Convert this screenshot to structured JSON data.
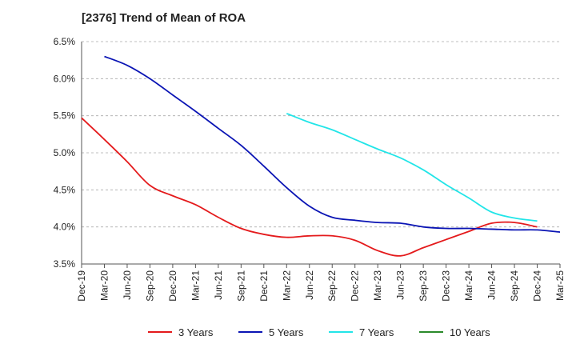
{
  "chart_data": {
    "type": "line",
    "title": "[2376]  Trend of Mean of ROA",
    "xlabel": "",
    "ylabel": "",
    "ylim": [
      3.5,
      6.5
    ],
    "y_ticks": [
      "3.5%",
      "4.0%",
      "4.5%",
      "5.0%",
      "5.5%",
      "6.0%",
      "6.5%"
    ],
    "y_tick_values": [
      3.5,
      4.0,
      4.5,
      5.0,
      5.5,
      6.0,
      6.5
    ],
    "x_ticks": [
      "Dec-19",
      "Mar-20",
      "Jun-20",
      "Sep-20",
      "Dec-20",
      "Mar-21",
      "Jun-21",
      "Sep-21",
      "Dec-21",
      "Mar-22",
      "Jun-22",
      "Sep-22",
      "Dec-22",
      "Mar-23",
      "Jun-23",
      "Sep-23",
      "Dec-23",
      "Mar-24",
      "Jun-24",
      "Sep-24",
      "Dec-24",
      "Mar-25"
    ],
    "grid": "horizontal-dashed",
    "legend_position": "bottom",
    "series": [
      {
        "name": "3 Years",
        "color": "#e41a1c",
        "start_index": 0,
        "values": [
          5.47,
          5.18,
          4.88,
          4.56,
          4.42,
          4.3,
          4.13,
          3.98,
          3.9,
          3.86,
          3.88,
          3.88,
          3.82,
          3.68,
          3.61,
          3.72,
          3.83,
          3.94,
          4.05,
          4.06,
          4.0
        ]
      },
      {
        "name": "5 Years",
        "color": "#0a14b4",
        "start_index": 1,
        "values": [
          6.3,
          6.18,
          6.0,
          5.78,
          5.56,
          5.33,
          5.1,
          4.82,
          4.53,
          4.28,
          4.13,
          4.09,
          4.06,
          4.05,
          4.0,
          3.98,
          3.98,
          3.97,
          3.96,
          3.96,
          3.93
        ]
      },
      {
        "name": "7 Years",
        "color": "#22e5e8",
        "start_index": 9,
        "values": [
          5.53,
          5.41,
          5.31,
          5.18,
          5.05,
          4.93,
          4.77,
          4.57,
          4.39,
          4.2,
          4.12,
          4.08
        ]
      },
      {
        "name": "10 Years",
        "color": "#2a8a2a",
        "start_index": 0,
        "values": []
      }
    ]
  }
}
